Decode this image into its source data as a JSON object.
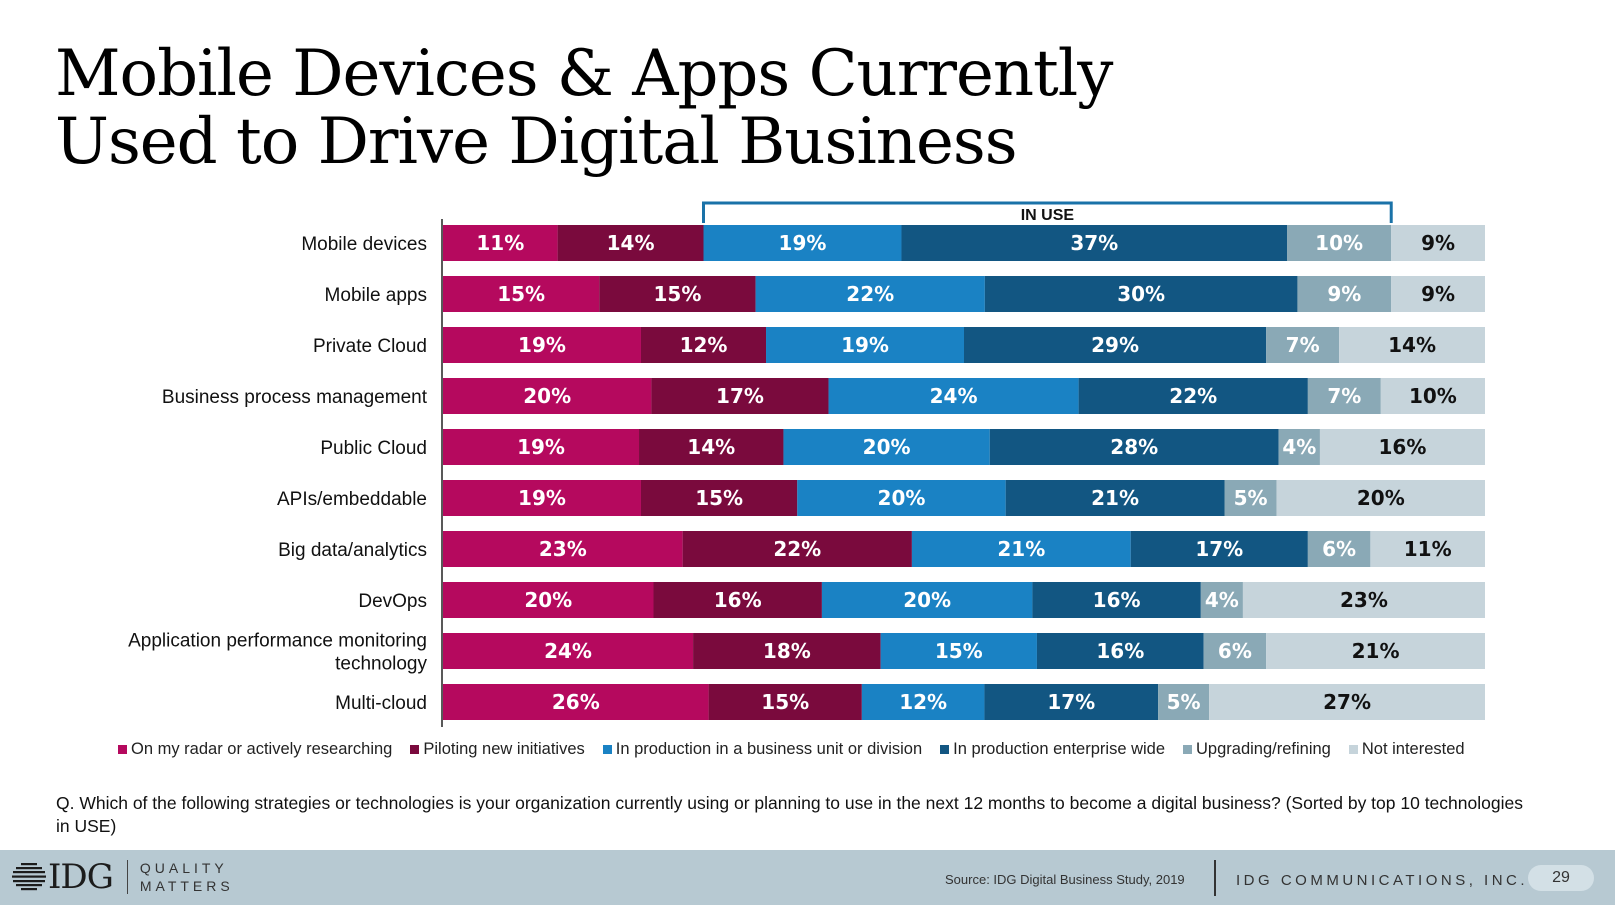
{
  "title_line1": "Mobile Devices & Apps Currently",
  "title_line2": "Used to Drive Digital Business",
  "bracket_label": "IN USE",
  "chart_data": {
    "type": "bar",
    "orientation": "horizontal-stacked-100",
    "categories": [
      [
        "Mobile devices"
      ],
      [
        "Mobile apps"
      ],
      [
        "Private Cloud"
      ],
      [
        "Business process management"
      ],
      [
        "Public Cloud"
      ],
      [
        "APIs/embeddable"
      ],
      [
        "Big data/analytics"
      ],
      [
        "DevOps"
      ],
      [
        "Application performance monitoring",
        "technology"
      ],
      [
        "Multi-cloud"
      ]
    ],
    "series": [
      {
        "name": "On my radar or actively researching",
        "color": "#b5095e",
        "text_color": "#ffffff",
        "values": [
          11,
          15,
          19,
          20,
          19,
          19,
          23,
          20,
          24,
          26
        ]
      },
      {
        "name": "Piloting new initiatives",
        "color": "#7a0a3d",
        "text_color": "#ffffff",
        "values": [
          14,
          15,
          12,
          17,
          14,
          15,
          22,
          16,
          18,
          15
        ]
      },
      {
        "name": "In production in a business unit or division",
        "color": "#1a82c4",
        "text_color": "#ffffff",
        "values": [
          19,
          22,
          19,
          24,
          20,
          20,
          21,
          20,
          15,
          12
        ]
      },
      {
        "name": "In production enterprise wide",
        "color": "#125682",
        "text_color": "#ffffff",
        "values": [
          37,
          30,
          29,
          22,
          28,
          21,
          17,
          16,
          16,
          17
        ]
      },
      {
        "name": "Upgrading/refining",
        "color": "#8aa9b6",
        "text_color": "#ffffff",
        "values": [
          10,
          9,
          7,
          7,
          4,
          5,
          6,
          4,
          6,
          5
        ]
      },
      {
        "name": "Not interested",
        "color": "#c6d4db",
        "text_color": "#111111",
        "values": [
          9,
          9,
          14,
          10,
          16,
          20,
          11,
          23,
          21,
          27
        ]
      }
    ],
    "value_suffix": "%",
    "in_use_series": [
      2,
      3,
      4
    ],
    "legend_position": "bottom"
  },
  "question": "Q. Which of the following strategies or technologies is your organization currently using or planning to use in the next 12 months to become a digital business? (Sorted by top 10 technologies in USE)",
  "footer": {
    "logo_text": "IDG",
    "tagline_line1": "QUALITY",
    "tagline_line2": "MATTERS",
    "source": "Source: IDG Digital Business Study, 2019",
    "company": "IDG COMMUNICATIONS, INC.",
    "page_number": "29"
  }
}
